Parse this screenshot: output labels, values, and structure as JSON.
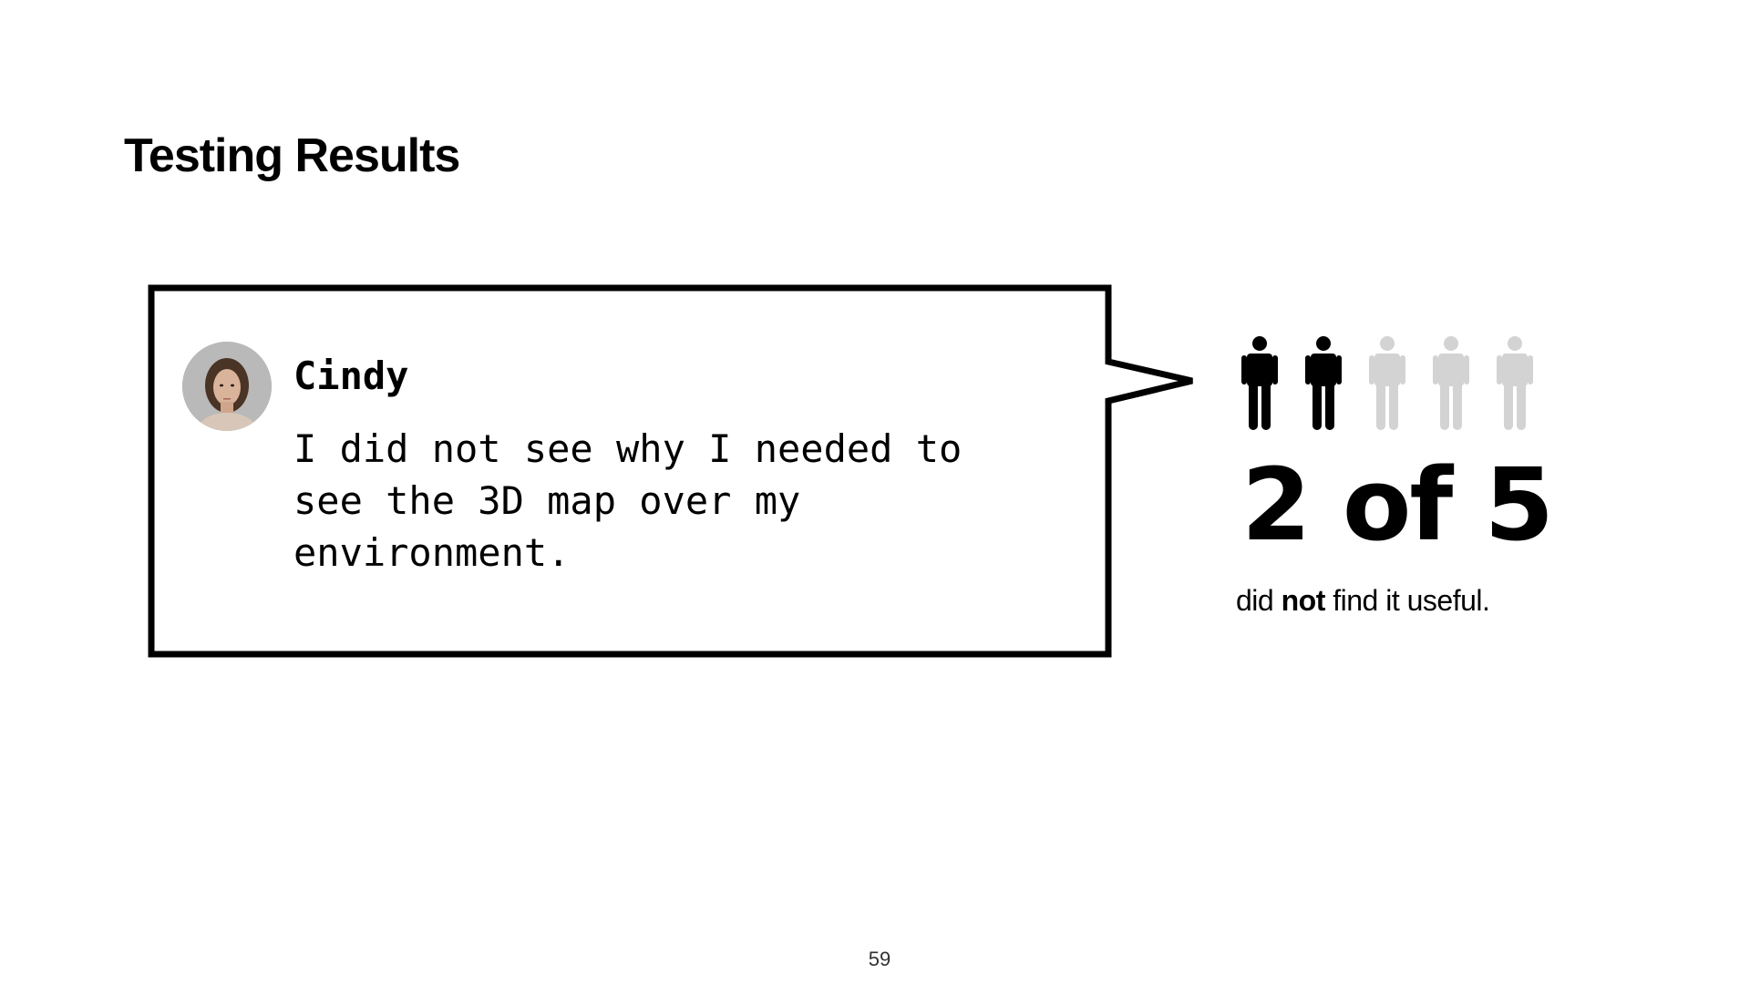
{
  "slide": {
    "title": "Testing Results",
    "page_number": "59"
  },
  "quote": {
    "name": "Cindy",
    "text_lines": [
      "I did not see why I needed to",
      "see the 3D map over my",
      "environment."
    ]
  },
  "stat": {
    "count": 2,
    "total": 5,
    "headline": "2 of 5",
    "caption_before": "did ",
    "caption_bold": "not",
    "caption_after": " find it useful.",
    "filled_color": "#000000",
    "empty_color": "#d3d3d3"
  },
  "icons": {
    "person": "person-icon",
    "avatar": "avatar"
  }
}
